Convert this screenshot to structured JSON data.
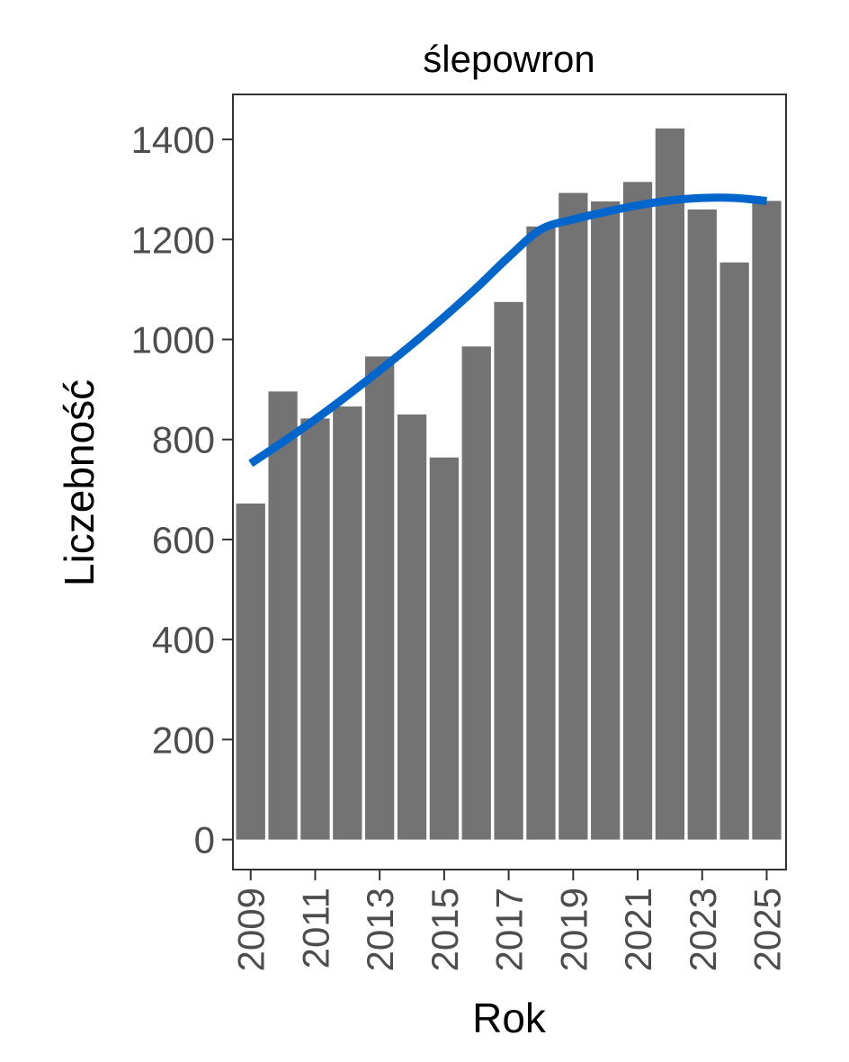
{
  "chart_data": {
    "type": "bar",
    "title": "ślepowron",
    "xlabel": "Rok",
    "ylabel": "Liczebność",
    "years": [
      2009,
      2010,
      2011,
      2012,
      2013,
      2014,
      2015,
      2016,
      2017,
      2018,
      2019,
      2020,
      2021,
      2022,
      2023,
      2024,
      2025
    ],
    "values": [
      672,
      896,
      842,
      866,
      966,
      850,
      764,
      986,
      1075,
      1226,
      1293,
      1276,
      1315,
      1422,
      1260,
      1154,
      1277
    ],
    "x_tick_labels": [
      "2009",
      "2011",
      "2013",
      "2015",
      "2017",
      "2019",
      "2021",
      "2023",
      "2025"
    ],
    "y_tick_labels": [
      "0",
      "200",
      "400",
      "600",
      "800",
      "1000",
      "1200",
      "1400"
    ],
    "ylim": [
      -60,
      1490
    ],
    "xlim": [
      2008.45,
      2025.6
    ],
    "trend": {
      "x": [
        2009,
        2010,
        2011,
        2012,
        2013,
        2014,
        2015,
        2016,
        2017,
        2018,
        2019,
        2020,
        2021,
        2022,
        2023,
        2024,
        2025
      ],
      "y": [
        752,
        795,
        840,
        888,
        938,
        990,
        1045,
        1103,
        1165,
        1220,
        1240,
        1255,
        1268,
        1278,
        1283,
        1283,
        1277
      ]
    },
    "grid": false,
    "legend": "none",
    "colors": {
      "bar": "#737373",
      "trend": "#0066cc",
      "panel_border": "#333333",
      "tick": "#333333"
    }
  }
}
